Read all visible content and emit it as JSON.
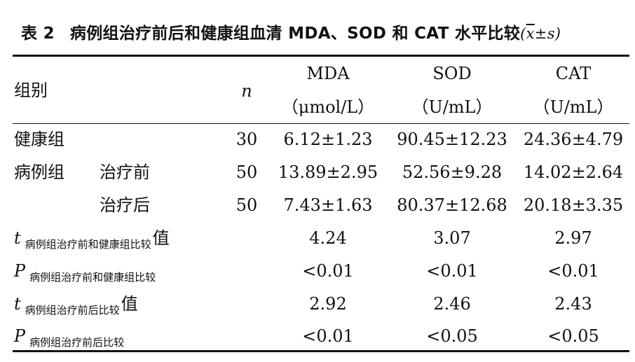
{
  "table": {
    "label": "表 2",
    "caption": "病例组治疗前后和健康组血清 MDA、SOD 和 CAT 水平比较",
    "stat_open": "(",
    "stat_x": "x",
    "stat_pm": "±",
    "stat_s": "s",
    "stat_close": ")",
    "headers": {
      "group": "组别",
      "n": "n",
      "mda": "MDA",
      "mda_unit": "（μmol/L）",
      "sod": "SOD",
      "sod_unit": "（U/mL）",
      "cat": "CAT",
      "cat_unit": "（U/mL）"
    },
    "rows": {
      "healthy": {
        "group": "健康组",
        "n": "30",
        "mda": "6.12±1.23",
        "sod": "90.45±12.23",
        "cat": "24.36±4.79"
      },
      "before": {
        "group": "病例组",
        "sub": "治疗前",
        "n": "50",
        "mda": "13.89±2.95",
        "sod": "52.56±9.28",
        "cat": "14.02±2.64"
      },
      "after": {
        "sub": "治疗后",
        "n": "50",
        "mda": "7.43±1.63",
        "sod": "80.37±12.68",
        "cat": "20.18±3.35"
      }
    },
    "stats": {
      "t1": {
        "sym": "t",
        "sub": "病例组治疗前和健康组比较",
        "tail": "值",
        "mda": "4.24",
        "sod": "3.07",
        "cat": "2.97"
      },
      "p1": {
        "sym": "P",
        "sub": "病例组治疗前和健康组比较",
        "mda": "<0.01",
        "sod": "<0.01",
        "cat": "<0.01"
      },
      "t2": {
        "sym": "t",
        "sub": "病例组治疗前后比较",
        "tail": "值",
        "mda": "2.92",
        "sod": "2.46",
        "cat": "2.43"
      },
      "p2": {
        "sym": "P",
        "sub": "病例组治疗前后比较",
        "mda": "<0.01",
        "sod": "<0.05",
        "cat": "<0.05"
      }
    }
  }
}
